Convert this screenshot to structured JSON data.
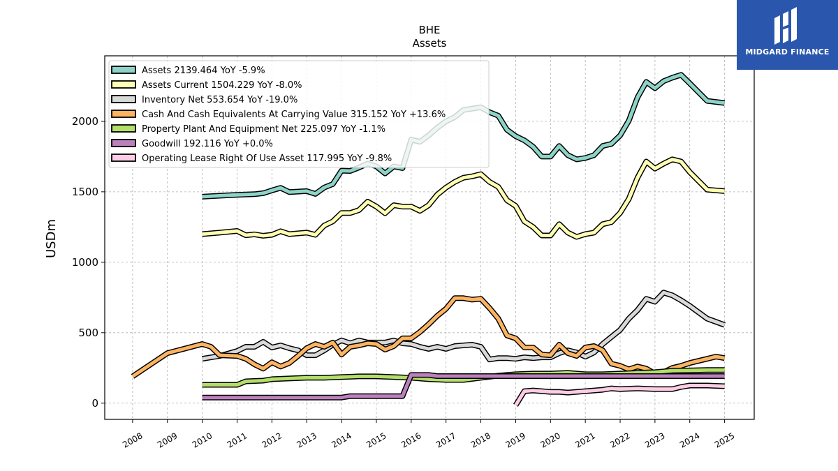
{
  "chart_data": {
    "type": "line",
    "title": "BHE",
    "subtitle": "Assets",
    "ylabel": "USDm",
    "xlabel": "",
    "xlim": [
      2007.2,
      2025.85
    ],
    "ylim": [
      -115,
      2465
    ],
    "x_ticks": [
      "2008",
      "2009",
      "2010",
      "2011",
      "2012",
      "2013",
      "2014",
      "2015",
      "2016",
      "2017",
      "2018",
      "2019",
      "2020",
      "2021",
      "2022",
      "2023",
      "2024",
      "2025"
    ],
    "y_ticks": [
      0,
      500,
      1000,
      1500,
      2000
    ],
    "grid": true,
    "legend_position": "upper-left",
    "series": [
      {
        "name": "Assets",
        "legend": "Assets  2139.464 YoY -5.9%",
        "color": "#8dd3c7",
        "points": [
          [
            2010,
            1465
          ],
          [
            2010.5,
            1472
          ],
          [
            2011,
            1478
          ],
          [
            2011.5,
            1483
          ],
          [
            2011.75,
            1490
          ],
          [
            2012,
            1510
          ],
          [
            2012.25,
            1528
          ],
          [
            2012.5,
            1498
          ],
          [
            2013,
            1505
          ],
          [
            2013.25,
            1485
          ],
          [
            2013.5,
            1530
          ],
          [
            2013.75,
            1555
          ],
          [
            2014,
            1650
          ],
          [
            2014.25,
            1648
          ],
          [
            2014.5,
            1672
          ],
          [
            2014.75,
            1700
          ],
          [
            2015,
            1680
          ],
          [
            2015.25,
            1630
          ],
          [
            2015.5,
            1680
          ],
          [
            2015.75,
            1668
          ],
          [
            2016,
            1870
          ],
          [
            2016.25,
            1855
          ],
          [
            2016.5,
            1900
          ],
          [
            2016.75,
            1955
          ],
          [
            2017,
            2000
          ],
          [
            2017.25,
            2030
          ],
          [
            2017.5,
            2080
          ],
          [
            2017.75,
            2090
          ],
          [
            2018,
            2100
          ],
          [
            2018.25,
            2065
          ],
          [
            2018.5,
            2040
          ],
          [
            2018.75,
            1940
          ],
          [
            2019,
            1895
          ],
          [
            2019.25,
            1865
          ],
          [
            2019.5,
            1820
          ],
          [
            2019.75,
            1750
          ],
          [
            2020,
            1750
          ],
          [
            2020.25,
            1825
          ],
          [
            2020.5,
            1760
          ],
          [
            2020.75,
            1730
          ],
          [
            2021,
            1740
          ],
          [
            2021.25,
            1760
          ],
          [
            2021.5,
            1825
          ],
          [
            2021.75,
            1840
          ],
          [
            2022,
            1900
          ],
          [
            2022.25,
            2005
          ],
          [
            2022.5,
            2170
          ],
          [
            2022.75,
            2280
          ],
          [
            2023,
            2235
          ],
          [
            2023.25,
            2285
          ],
          [
            2023.5,
            2310
          ],
          [
            2023.75,
            2330
          ],
          [
            2024,
            2270
          ],
          [
            2024.5,
            2145
          ],
          [
            2025,
            2130
          ]
        ]
      },
      {
        "name": "Assets Current",
        "legend": "Assets Current  1504.229 YoY -8.0%",
        "color": "#ffffb3",
        "points": [
          [
            2010,
            1200
          ],
          [
            2010.5,
            1210
          ],
          [
            2011,
            1222
          ],
          [
            2011.25,
            1192
          ],
          [
            2011.5,
            1198
          ],
          [
            2011.75,
            1188
          ],
          [
            2012,
            1195
          ],
          [
            2012.25,
            1220
          ],
          [
            2012.5,
            1200
          ],
          [
            2013,
            1210
          ],
          [
            2013.25,
            1195
          ],
          [
            2013.5,
            1260
          ],
          [
            2013.75,
            1290
          ],
          [
            2014,
            1350
          ],
          [
            2014.25,
            1350
          ],
          [
            2014.5,
            1370
          ],
          [
            2014.75,
            1430
          ],
          [
            2015,
            1395
          ],
          [
            2015.25,
            1348
          ],
          [
            2015.5,
            1405
          ],
          [
            2015.75,
            1395
          ],
          [
            2016,
            1395
          ],
          [
            2016.25,
            1365
          ],
          [
            2016.5,
            1405
          ],
          [
            2016.75,
            1480
          ],
          [
            2017,
            1530
          ],
          [
            2017.25,
            1570
          ],
          [
            2017.5,
            1600
          ],
          [
            2017.75,
            1610
          ],
          [
            2018,
            1625
          ],
          [
            2018.25,
            1570
          ],
          [
            2018.5,
            1535
          ],
          [
            2018.75,
            1440
          ],
          [
            2019,
            1400
          ],
          [
            2019.25,
            1290
          ],
          [
            2019.5,
            1250
          ],
          [
            2019.75,
            1190
          ],
          [
            2020,
            1190
          ],
          [
            2020.25,
            1270
          ],
          [
            2020.5,
            1210
          ],
          [
            2020.75,
            1180
          ],
          [
            2021,
            1200
          ],
          [
            2021.25,
            1210
          ],
          [
            2021.5,
            1270
          ],
          [
            2021.75,
            1285
          ],
          [
            2022,
            1350
          ],
          [
            2022.25,
            1450
          ],
          [
            2022.5,
            1600
          ],
          [
            2022.75,
            1715
          ],
          [
            2023,
            1665
          ],
          [
            2023.25,
            1700
          ],
          [
            2023.5,
            1730
          ],
          [
            2023.75,
            1715
          ],
          [
            2024,
            1640
          ],
          [
            2024.5,
            1515
          ],
          [
            2025,
            1505
          ]
        ]
      },
      {
        "name": "Inventory Net",
        "legend": "Inventory Net  553.654 YoY -19.0%",
        "color": "#d9d9d9",
        "points": [
          [
            2010,
            315
          ],
          [
            2010.5,
            335
          ],
          [
            2011,
            370
          ],
          [
            2011.25,
            400
          ],
          [
            2011.5,
            400
          ],
          [
            2011.75,
            435
          ],
          [
            2012,
            395
          ],
          [
            2012.25,
            410
          ],
          [
            2012.5,
            390
          ],
          [
            2012.75,
            375
          ],
          [
            2013,
            340
          ],
          [
            2013.25,
            340
          ],
          [
            2013.5,
            375
          ],
          [
            2013.75,
            415
          ],
          [
            2014,
            445
          ],
          [
            2014.25,
            425
          ],
          [
            2014.5,
            445
          ],
          [
            2014.75,
            430
          ],
          [
            2015,
            430
          ],
          [
            2015.25,
            430
          ],
          [
            2015.5,
            445
          ],
          [
            2015.75,
            425
          ],
          [
            2016,
            420
          ],
          [
            2016.25,
            400
          ],
          [
            2016.5,
            385
          ],
          [
            2016.75,
            400
          ],
          [
            2017,
            385
          ],
          [
            2017.25,
            405
          ],
          [
            2017.5,
            410
          ],
          [
            2017.75,
            415
          ],
          [
            2018,
            400
          ],
          [
            2018.25,
            310
          ],
          [
            2018.5,
            320
          ],
          [
            2018.75,
            320
          ],
          [
            2019,
            315
          ],
          [
            2019.25,
            325
          ],
          [
            2019.5,
            320
          ],
          [
            2019.75,
            325
          ],
          [
            2020,
            325
          ],
          [
            2020.25,
            355
          ],
          [
            2020.5,
            375
          ],
          [
            2020.75,
            360
          ],
          [
            2021,
            330
          ],
          [
            2021.25,
            360
          ],
          [
            2021.5,
            420
          ],
          [
            2021.75,
            470
          ],
          [
            2022,
            520
          ],
          [
            2022.25,
            600
          ],
          [
            2022.5,
            660
          ],
          [
            2022.75,
            740
          ],
          [
            2023,
            720
          ],
          [
            2023.25,
            785
          ],
          [
            2023.5,
            765
          ],
          [
            2023.75,
            730
          ],
          [
            2024,
            690
          ],
          [
            2024.5,
            600
          ],
          [
            2025,
            555
          ]
        ]
      },
      {
        "name": "Cash And Cash Equivalents At Carrying Value",
        "legend": "Cash And Cash Equivalents At Carrying Value  315.152 YoY +13.6%",
        "color": "#fdb462",
        "points": [
          [
            2008,
            190
          ],
          [
            2009,
            355
          ],
          [
            2010,
            420
          ],
          [
            2010.25,
            400
          ],
          [
            2010.5,
            340
          ],
          [
            2011,
            335
          ],
          [
            2011.25,
            315
          ],
          [
            2011.5,
            275
          ],
          [
            2011.75,
            245
          ],
          [
            2012,
            290
          ],
          [
            2012.25,
            260
          ],
          [
            2012.5,
            285
          ],
          [
            2012.75,
            335
          ],
          [
            2013,
            390
          ],
          [
            2013.25,
            420
          ],
          [
            2013.5,
            400
          ],
          [
            2013.75,
            430
          ],
          [
            2014,
            345
          ],
          [
            2014.25,
            400
          ],
          [
            2014.5,
            410
          ],
          [
            2014.75,
            425
          ],
          [
            2015,
            420
          ],
          [
            2015.25,
            380
          ],
          [
            2015.5,
            405
          ],
          [
            2015.75,
            460
          ],
          [
            2016,
            460
          ],
          [
            2016.25,
            505
          ],
          [
            2016.5,
            560
          ],
          [
            2016.75,
            620
          ],
          [
            2017,
            670
          ],
          [
            2017.25,
            745
          ],
          [
            2017.5,
            745
          ],
          [
            2017.75,
            735
          ],
          [
            2018,
            740
          ],
          [
            2018.25,
            675
          ],
          [
            2018.5,
            600
          ],
          [
            2018.75,
            480
          ],
          [
            2019,
            460
          ],
          [
            2019.25,
            395
          ],
          [
            2019.5,
            395
          ],
          [
            2019.75,
            345
          ],
          [
            2020,
            340
          ],
          [
            2020.25,
            415
          ],
          [
            2020.5,
            355
          ],
          [
            2020.75,
            335
          ],
          [
            2021,
            395
          ],
          [
            2021.25,
            405
          ],
          [
            2021.5,
            375
          ],
          [
            2021.75,
            280
          ],
          [
            2022,
            265
          ],
          [
            2022.25,
            240
          ],
          [
            2022.5,
            260
          ],
          [
            2022.75,
            245
          ],
          [
            2023,
            210
          ],
          [
            2023.25,
            220
          ],
          [
            2023.5,
            250
          ],
          [
            2023.75,
            265
          ],
          [
            2024,
            285
          ],
          [
            2024.5,
            315
          ],
          [
            2024.75,
            330
          ],
          [
            2025,
            320
          ]
        ]
      },
      {
        "name": "Property Plant And Equipment Net",
        "legend": "Property Plant And Equipment Net  225.097 YoY -1.1%",
        "color": "#b3de69",
        "points": [
          [
            2010,
            130
          ],
          [
            2011,
            130
          ],
          [
            2011.25,
            155
          ],
          [
            2011.75,
            160
          ],
          [
            2012,
            170
          ],
          [
            2012.5,
            175
          ],
          [
            2013,
            180
          ],
          [
            2013.5,
            180
          ],
          [
            2014,
            185
          ],
          [
            2014.5,
            190
          ],
          [
            2015,
            190
          ],
          [
            2015.5,
            185
          ],
          [
            2016,
            180
          ],
          [
            2016.5,
            170
          ],
          [
            2017,
            165
          ],
          [
            2017.5,
            165
          ],
          [
            2018,
            180
          ],
          [
            2018.5,
            195
          ],
          [
            2019,
            205
          ],
          [
            2019.5,
            210
          ],
          [
            2020,
            210
          ],
          [
            2020.5,
            215
          ],
          [
            2021,
            205
          ],
          [
            2021.5,
            205
          ],
          [
            2022,
            210
          ],
          [
            2022.5,
            215
          ],
          [
            2023,
            220
          ],
          [
            2023.5,
            230
          ],
          [
            2024,
            232
          ],
          [
            2024.5,
            235
          ],
          [
            2025,
            235
          ]
        ]
      },
      {
        "name": "Goodwill",
        "legend": "Goodwill  192.116 YoY +0.0%",
        "color": "#bc80bd",
        "points": [
          [
            2010,
            40
          ],
          [
            2012,
            40
          ],
          [
            2014,
            40
          ],
          [
            2014.25,
            50
          ],
          [
            2015,
            50
          ],
          [
            2015.75,
            50
          ],
          [
            2016,
            200
          ],
          [
            2016.5,
            200
          ],
          [
            2016.75,
            192
          ],
          [
            2018,
            192
          ],
          [
            2020,
            192
          ],
          [
            2022,
            192
          ],
          [
            2024,
            192
          ],
          [
            2025,
            192
          ]
        ]
      },
      {
        "name": "Operating Lease Right Of Use Asset",
        "legend": "Operating Lease Right Of Use Asset  117.995 YoY -9.8%",
        "color": "#fccde5",
        "points": [
          [
            2019,
            -15
          ],
          [
            2019.25,
            85
          ],
          [
            2019.5,
            90
          ],
          [
            2020,
            80
          ],
          [
            2020.25,
            80
          ],
          [
            2020.5,
            75
          ],
          [
            2021,
            85
          ],
          [
            2021.25,
            90
          ],
          [
            2021.5,
            95
          ],
          [
            2021.75,
            105
          ],
          [
            2022,
            100
          ],
          [
            2022.5,
            105
          ],
          [
            2023,
            100
          ],
          [
            2023.5,
            100
          ],
          [
            2023.75,
            115
          ],
          [
            2024,
            125
          ],
          [
            2024.5,
            125
          ],
          [
            2025,
            120
          ]
        ]
      }
    ]
  },
  "logo": {
    "text": "MIDGARD FINANCE",
    "icon": "midgard-logo-icon",
    "background": "#2a56ae"
  }
}
